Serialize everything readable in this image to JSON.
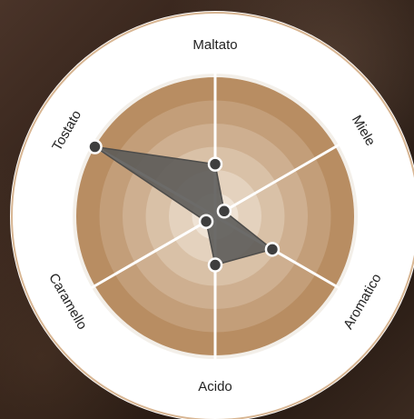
{
  "chart_data": {
    "type": "radar",
    "axes": [
      "Maltato",
      "Miele",
      "Aromatico",
      "Acido",
      "Caramello",
      "Tostato"
    ],
    "values": [
      1.5,
      0.3,
      1.9,
      1.4,
      0.3,
      4.0
    ],
    "rmax": 4.0,
    "rings": 6,
    "colors": {
      "background": "#2c1d14",
      "outer_disc": "#ffffff",
      "inner_ring": "#f3efe9",
      "ring_outer": "#b88d62",
      "ring_inner": "#efe3d5",
      "spokes": "#ffffff",
      "polygon_fill": "#5c5b59",
      "point_fill": "#3e3e3e",
      "point_stroke": "#ffffff",
      "label_text": "#222222"
    }
  }
}
